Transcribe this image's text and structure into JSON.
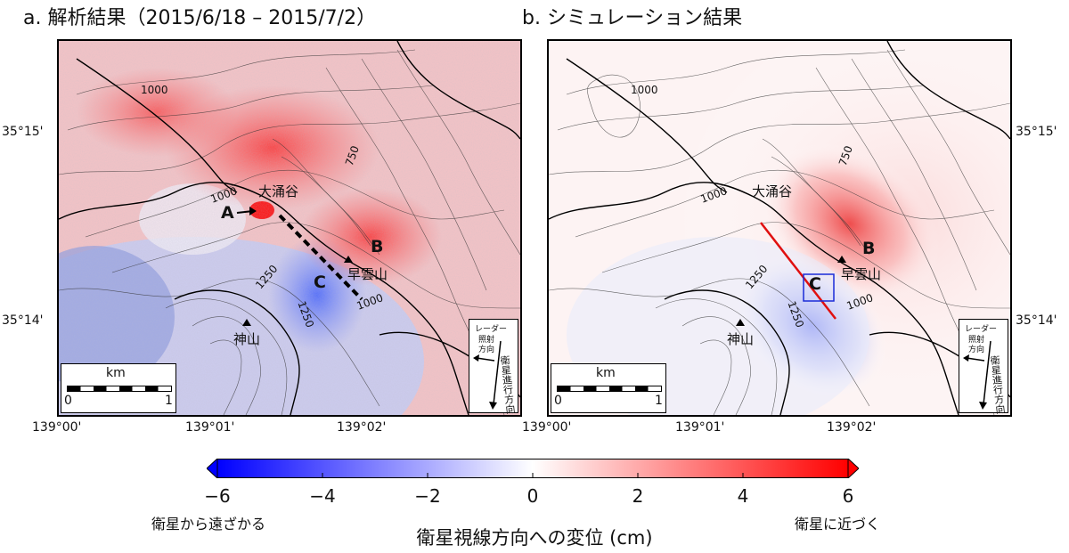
{
  "panels": {
    "a": {
      "title": "a. 解析結果（2015/6/18 – 2015/7/2）",
      "labels": {
        "owakudani": "大涌谷",
        "hayakumo": "早雲山",
        "kamiyama": "神山",
        "A": "A",
        "B": "B",
        "C": "C"
      },
      "contours": [
        "1000",
        "750",
        "1000",
        "1250",
        "1250",
        "1000"
      ]
    },
    "b": {
      "title": "b. シミュレーション結果",
      "labels": {
        "owakudani": "大涌谷",
        "hayakumo": "早雲山",
        "kamiyama": "神山",
        "B": "B",
        "C": "C"
      },
      "contours": [
        "1000",
        "750",
        "1000",
        "1250",
        "1250",
        "1000"
      ]
    }
  },
  "axes": {
    "lat_ticks": [
      "35°15'",
      "35°14'"
    ],
    "lon_ticks": [
      "139°00'",
      "139°01'",
      "139°02'"
    ]
  },
  "scalebar": {
    "unit": "km",
    "start": "0",
    "end": "1"
  },
  "direction": {
    "radar": "レーダー",
    "irradiation": "照射",
    "direction": "方向",
    "orbit": "衛星進行方向"
  },
  "colorbar": {
    "ticks": [
      "−6",
      "−4",
      "−2",
      "0",
      "2",
      "4",
      "6"
    ],
    "min": -6,
    "max": 6,
    "colors": {
      "neg": "#0000ff",
      "mid": "#ffffff",
      "pos": "#ff0000"
    },
    "left_note": "衛星から遠ざかる",
    "right_note": "衛星に近づく",
    "title": "衛星視線方向への変位 (cm)"
  }
}
